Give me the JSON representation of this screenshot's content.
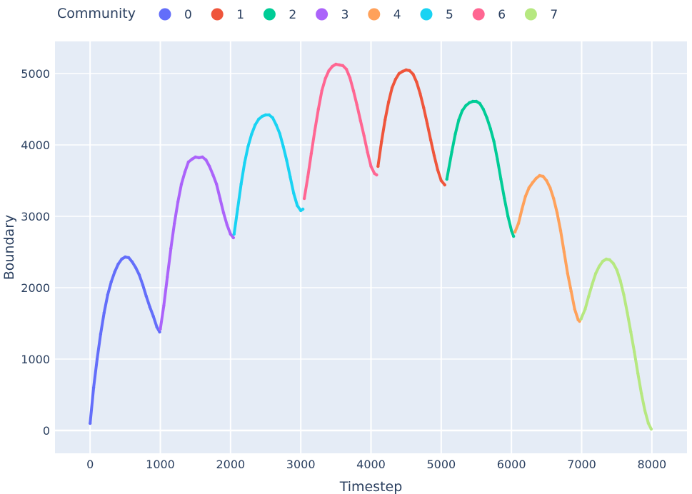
{
  "chart_data": {
    "type": "scatter",
    "xlabel": "Timestep",
    "ylabel": "Boundary",
    "xlim": [
      -500,
      8500
    ],
    "ylim": [
      -320,
      5450
    ],
    "x_ticks": [
      0,
      1000,
      2000,
      3000,
      4000,
      5000,
      6000,
      7000,
      8000
    ],
    "y_ticks": [
      0,
      1000,
      2000,
      3000,
      4000,
      5000
    ],
    "grid": true,
    "legend": {
      "title": "Community",
      "placement": "top",
      "orientation": "horizontal"
    },
    "series": [
      {
        "name": "0",
        "color": "#636efa",
        "x": [
          0,
          50,
          100,
          150,
          200,
          250,
          300,
          350,
          400,
          450,
          500,
          550,
          600,
          650,
          700,
          750,
          800,
          850,
          900,
          950,
          990
        ],
        "y": [
          100,
          600,
          1000,
          1350,
          1650,
          1900,
          2080,
          2220,
          2330,
          2400,
          2430,
          2420,
          2360,
          2280,
          2180,
          2040,
          1880,
          1730,
          1600,
          1450,
          1380
        ]
      },
      {
        "name": "3",
        "color": "#ab63fa",
        "x": [
          1000,
          1050,
          1100,
          1150,
          1200,
          1250,
          1300,
          1350,
          1400,
          1450,
          1500,
          1550,
          1600,
          1650,
          1700,
          1750,
          1800,
          1850,
          1900,
          1950,
          2000,
          2040
        ],
        "y": [
          1420,
          1750,
          2150,
          2550,
          2900,
          3200,
          3450,
          3620,
          3760,
          3800,
          3830,
          3820,
          3830,
          3790,
          3700,
          3580,
          3450,
          3250,
          3050,
          2880,
          2750,
          2700
        ]
      },
      {
        "name": "5",
        "color": "#19d3f3",
        "x": [
          2050,
          2100,
          2150,
          2200,
          2250,
          2300,
          2350,
          2400,
          2450,
          2500,
          2550,
          2600,
          2650,
          2700,
          2750,
          2800,
          2850,
          2900,
          2950,
          3000,
          3030
        ],
        "y": [
          2750,
          3100,
          3450,
          3750,
          3980,
          4150,
          4280,
          4360,
          4400,
          4420,
          4420,
          4380,
          4280,
          4160,
          3980,
          3780,
          3550,
          3320,
          3150,
          3080,
          3100
        ]
      },
      {
        "name": "6",
        "color": "#ff6692",
        "x": [
          3050,
          3100,
          3150,
          3200,
          3250,
          3300,
          3350,
          3400,
          3450,
          3500,
          3550,
          3600,
          3650,
          3700,
          3750,
          3800,
          3850,
          3900,
          3950,
          4000,
          4050,
          4080
        ],
        "y": [
          3250,
          3550,
          3880,
          4200,
          4500,
          4760,
          4930,
          5040,
          5100,
          5130,
          5120,
          5110,
          5060,
          4940,
          4760,
          4560,
          4340,
          4130,
          3900,
          3700,
          3600,
          3580
        ]
      },
      {
        "name": "1",
        "color": "#ef553b",
        "x": [
          4100,
          4150,
          4200,
          4250,
          4300,
          4350,
          4400,
          4450,
          4500,
          4550,
          4600,
          4650,
          4700,
          4750,
          4800,
          4850,
          4900,
          4950,
          5000,
          5050
        ],
        "y": [
          3700,
          4050,
          4350,
          4600,
          4800,
          4920,
          5000,
          5030,
          5050,
          5040,
          4990,
          4880,
          4720,
          4520,
          4300,
          4070,
          3850,
          3650,
          3500,
          3440
        ]
      },
      {
        "name": "2",
        "color": "#00cc96",
        "x": [
          5080,
          5150,
          5200,
          5250,
          5300,
          5350,
          5400,
          5450,
          5500,
          5550,
          5600,
          5650,
          5700,
          5750,
          5800,
          5850,
          5900,
          5950,
          6000,
          6030
        ],
        "y": [
          3520,
          3900,
          4150,
          4350,
          4480,
          4550,
          4590,
          4610,
          4610,
          4580,
          4500,
          4380,
          4230,
          4050,
          3800,
          3520,
          3250,
          3000,
          2800,
          2720
        ]
      },
      {
        "name": "4",
        "color": "#ffa15a",
        "x": [
          6050,
          6100,
          6150,
          6200,
          6250,
          6300,
          6350,
          6400,
          6450,
          6500,
          6550,
          6600,
          6650,
          6700,
          6750,
          6800,
          6850,
          6900,
          6950,
          6970
        ],
        "y": [
          2780,
          2900,
          3100,
          3280,
          3400,
          3470,
          3530,
          3570,
          3560,
          3500,
          3400,
          3250,
          3050,
          2800,
          2500,
          2200,
          1950,
          1700,
          1550,
          1530
        ]
      },
      {
        "name": "7",
        "color": "#b6e880",
        "x": [
          6990,
          7050,
          7100,
          7150,
          7200,
          7250,
          7300,
          7350,
          7400,
          7450,
          7500,
          7550,
          7600,
          7650,
          7700,
          7750,
          7800,
          7850,
          7900,
          7950,
          7990
        ],
        "y": [
          1560,
          1700,
          1880,
          2050,
          2200,
          2300,
          2370,
          2400,
          2390,
          2340,
          2250,
          2100,
          1900,
          1650,
          1380,
          1100,
          800,
          520,
          280,
          100,
          20
        ]
      }
    ]
  }
}
